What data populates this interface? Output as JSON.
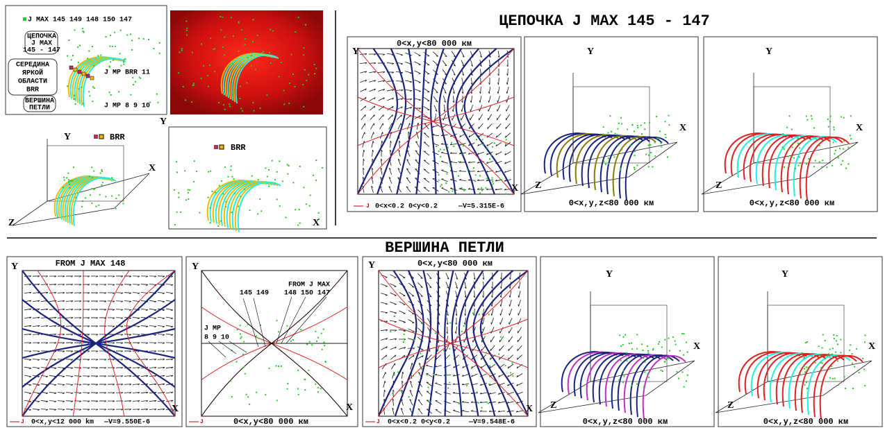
{
  "top_left": {
    "legend": "J MAX 145 149 148 150 147",
    "label_chain": [
      "ЦЕПОЧКА",
      "J MAX",
      "145 - 147"
    ],
    "label_middle": [
      "СЕРЕДИНА",
      "ЯРКОЙ",
      "ОБЛАСТИ",
      "BRR"
    ],
    "label_apex": [
      "ВЕРШИНА",
      "ПЕТЛИ"
    ],
    "jmp_brr": "J MP BRR 11",
    "jmp": "J MP 8 9 10"
  },
  "small_3d": {
    "y": "Y",
    "x": "X",
    "z": "Z",
    "legend": "BRR"
  },
  "small_2d": {
    "y": "Y",
    "x": "X",
    "legend": "BRR"
  },
  "chain": {
    "title": "ЦЕПОЧКА J MAX 145 - 147",
    "panels": [
      {
        "caption": "0<x,y<80 000 км",
        "y": "Y",
        "x": "X",
        "footer_j": "J",
        "footer_range": "0<x<0.2 0<y<0.2",
        "footer_v": "—V=5.315E-6"
      },
      {
        "caption": "0<x,y,z<80 000 км",
        "y": "Y",
        "x": "X",
        "z": "Z"
      },
      {
        "caption": "0<x,y,z<80 000 км",
        "y": "Y",
        "x": "X",
        "z": "Z"
      }
    ]
  },
  "apex": {
    "title": "ВЕРШИНА ПЕТЛИ",
    "panels": [
      {
        "caption": "FROM J MAX 148",
        "y": "Y",
        "x": "X",
        "footer_j": "J",
        "footer_range": "0<x,y<12 000 km",
        "footer_v": "—V=9.550E-6"
      },
      {
        "caption": "0<x,y<80 000 км",
        "y": "Y",
        "x": "X",
        "footer_j": "J",
        "label_jmax_a": "145 149",
        "label_from": "FROM J MAX",
        "label_jmax_b": "148 150 147",
        "label_jmp": "J MP",
        "label_jmp_nums": "8 9 10"
      },
      {
        "caption": "0<x,y<80 000 км",
        "y": "Y",
        "x": "X",
        "footer_j": "J",
        "footer_range": "0<x<0.2 0<y<0.2",
        "footer_v": "—V=9.548E-6"
      },
      {
        "caption": "0<x,y,z<80 000 км",
        "y": "Y",
        "x": "X",
        "z": "Z"
      },
      {
        "caption": "0<x,y,z<80 000 км",
        "y": "Y",
        "x": "X",
        "z": "Z"
      }
    ]
  }
}
